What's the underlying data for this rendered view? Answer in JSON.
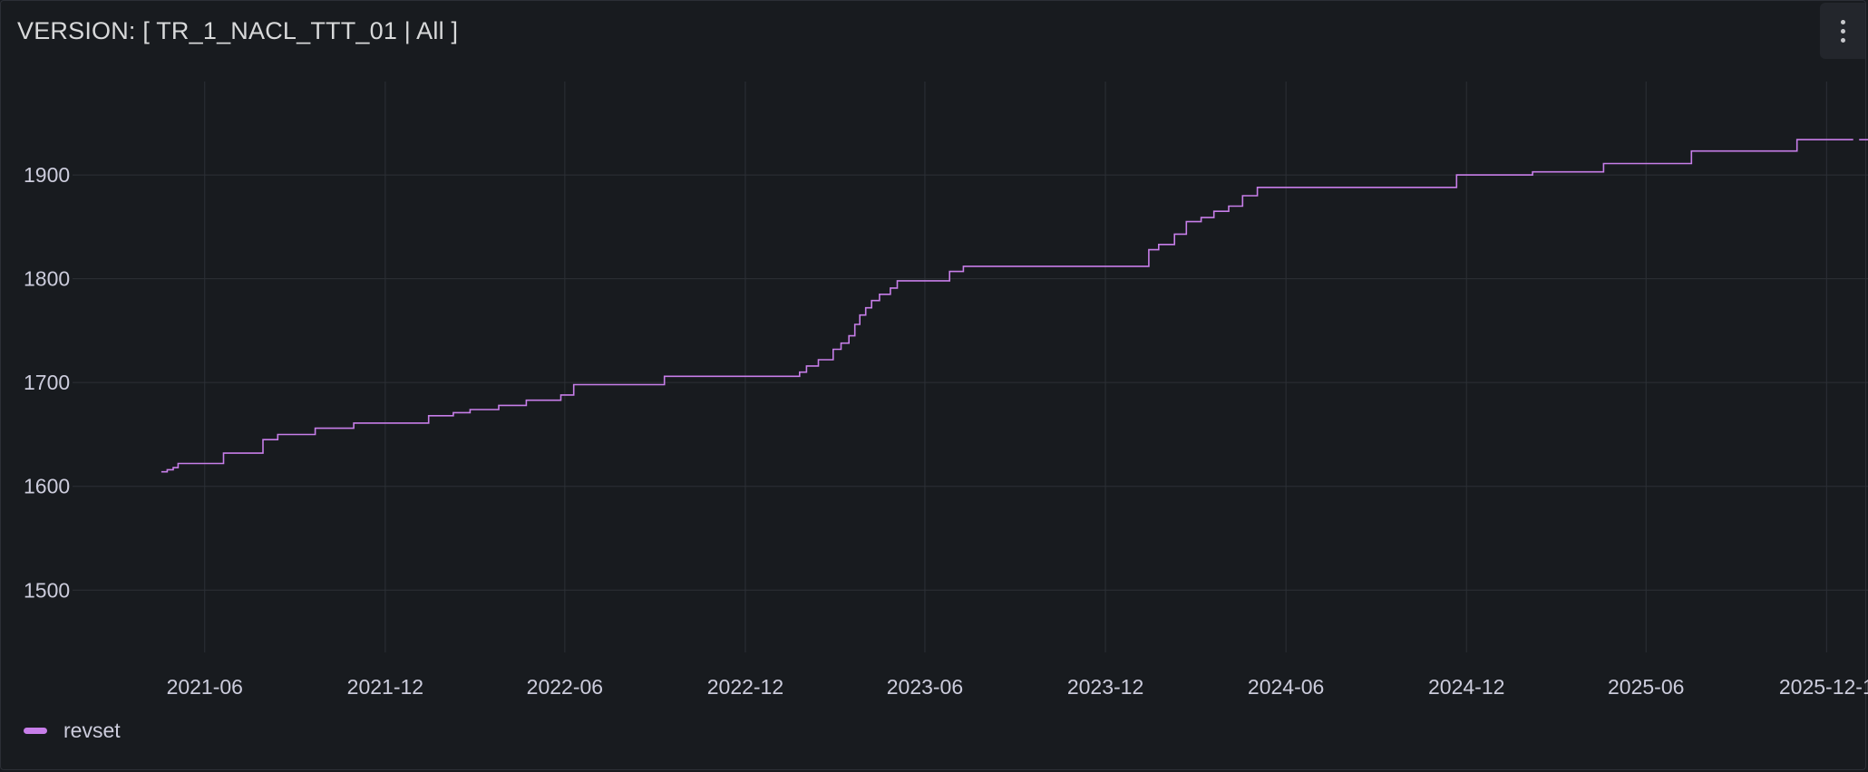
{
  "panel": {
    "title": "VERSION: [ TR_1_NACL_TTT_01 | All ]",
    "menu_icon": "kebab-menu-icon"
  },
  "colors": {
    "background": "#181b1f",
    "grid": "#2c3036",
    "series": "#c77ee9",
    "text": "#ccccdc"
  },
  "chart_data": {
    "type": "line",
    "title": "VERSION: [ TR_1_NACL_TTT_01 | All ]",
    "xlabel": "",
    "ylabel": "",
    "line_style": "step",
    "grid": true,
    "legend": "bottom-left",
    "x_ticks": [
      "2021-06",
      "2021-12",
      "2022-06",
      "2022-12",
      "2023-06",
      "2023-12",
      "2024-06",
      "2024-12",
      "2025-06",
      "2025-12-1"
    ],
    "y_ticks": [
      1500,
      1600,
      1700,
      1800,
      1900
    ],
    "xlim": [
      "2021-01-18",
      "2026-01-12"
    ],
    "ylim": [
      1440,
      1990
    ],
    "series": [
      {
        "name": "revset",
        "color": "#c77ee9",
        "points": [
          [
            "2021-04-18",
            1614
          ],
          [
            "2021-04-24",
            1616
          ],
          [
            "2021-04-30",
            1618
          ],
          [
            "2021-05-05",
            1622
          ],
          [
            "2021-06-20",
            1632
          ],
          [
            "2021-07-30",
            1645
          ],
          [
            "2021-08-14",
            1650
          ],
          [
            "2021-09-21",
            1656
          ],
          [
            "2021-10-30",
            1661
          ],
          [
            "2022-01-14",
            1668
          ],
          [
            "2022-02-08",
            1671
          ],
          [
            "2022-02-25",
            1674
          ],
          [
            "2022-03-26",
            1678
          ],
          [
            "2022-04-23",
            1683
          ],
          [
            "2022-05-28",
            1688
          ],
          [
            "2022-06-10",
            1698
          ],
          [
            "2022-09-10",
            1706
          ],
          [
            "2023-01-25",
            1710
          ],
          [
            "2023-02-01",
            1716
          ],
          [
            "2023-02-13",
            1722
          ],
          [
            "2023-02-28",
            1732
          ],
          [
            "2023-03-08",
            1738
          ],
          [
            "2023-03-16",
            1745
          ],
          [
            "2023-03-22",
            1756
          ],
          [
            "2023-03-27",
            1765
          ],
          [
            "2023-04-02",
            1772
          ],
          [
            "2023-04-08",
            1779
          ],
          [
            "2023-04-16",
            1785
          ],
          [
            "2023-04-27",
            1791
          ],
          [
            "2023-05-04",
            1798
          ],
          [
            "2023-06-26",
            1807
          ],
          [
            "2023-07-10",
            1812
          ],
          [
            "2024-01-14",
            1828
          ],
          [
            "2024-01-24",
            1833
          ],
          [
            "2024-02-09",
            1843
          ],
          [
            "2024-02-21",
            1855
          ],
          [
            "2024-03-07",
            1859
          ],
          [
            "2024-03-20",
            1865
          ],
          [
            "2024-04-04",
            1870
          ],
          [
            "2024-04-18",
            1880
          ],
          [
            "2024-05-03",
            1888
          ],
          [
            "2024-11-21",
            1900
          ],
          [
            "2025-02-06",
            1903
          ],
          [
            "2025-04-19",
            1911
          ],
          [
            "2025-07-17",
            1923
          ],
          [
            "2025-11-01",
            1934
          ],
          [
            "2025-12-28",
            1934
          ]
        ],
        "tail_points": [
          [
            "2026-01-03",
            1934
          ],
          [
            "2026-01-12",
            1934
          ]
        ]
      }
    ]
  }
}
